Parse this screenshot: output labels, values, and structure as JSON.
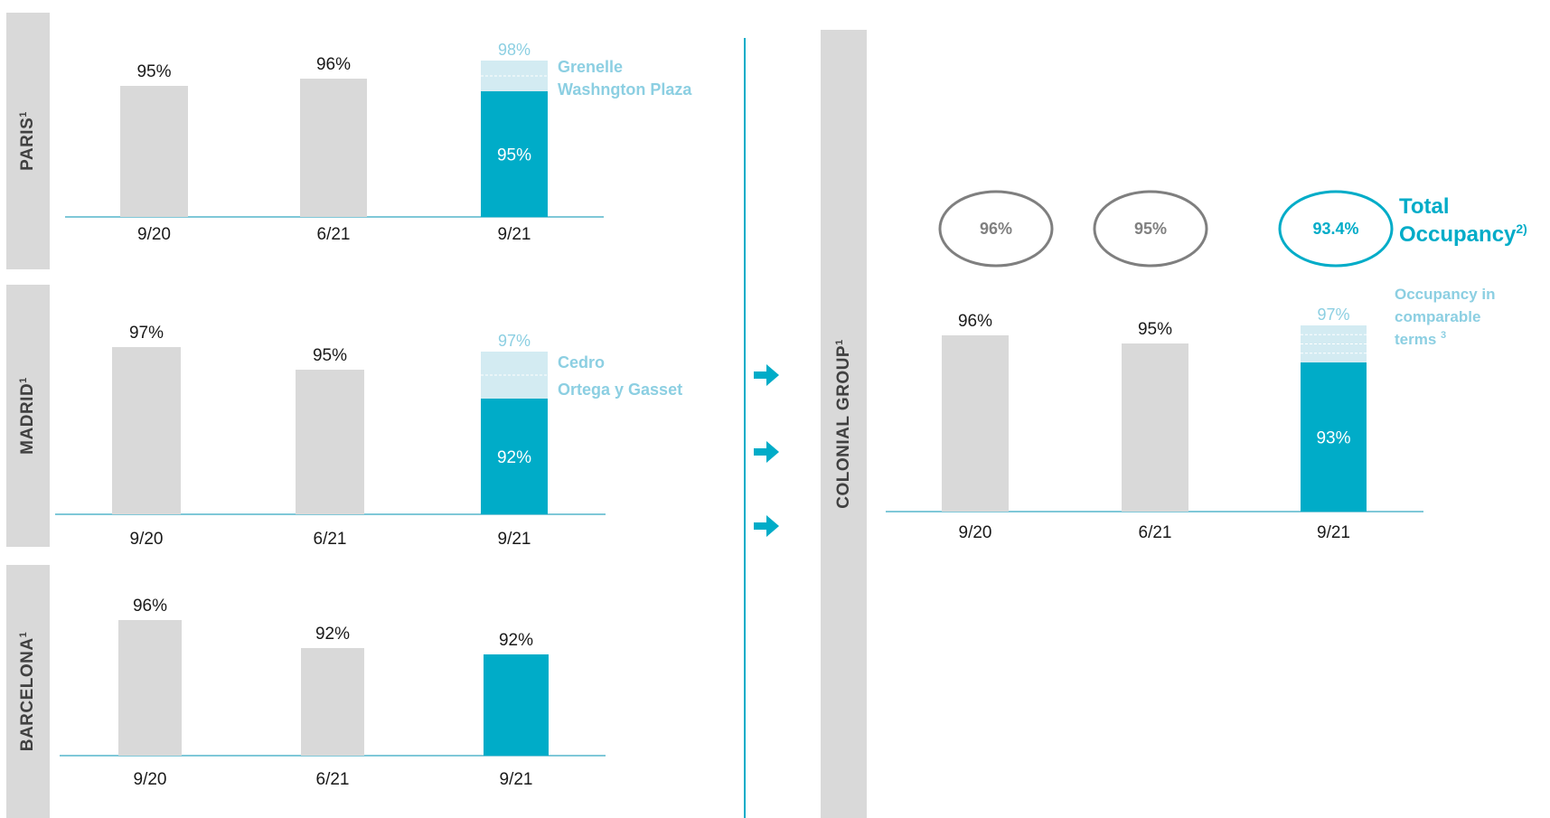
{
  "colors": {
    "gray": "#d9d9d9",
    "accent": "#00acc8",
    "light": "#d3ebf2",
    "lightText": "#8ccfe2",
    "axis": "#7fc8d8",
    "text": "#1a1a1a",
    "circleGray": "#7f7f7f",
    "circleText": "#808080"
  },
  "panels": {
    "paris": {
      "label": "PARIS",
      "sup": "1"
    },
    "madrid": {
      "label": "MADRID",
      "sup": "1"
    },
    "barcelona": {
      "label": "BARCELONA",
      "sup": "1"
    },
    "group": {
      "label": "COLONIAL GROUP",
      "sup": "1"
    }
  },
  "arrows": [
    "arrow",
    "arrow",
    "arrow"
  ],
  "summary_circles": [
    {
      "label": "96%",
      "highlight": false
    },
    {
      "label": "95%",
      "highlight": false
    },
    {
      "label": "93.4%",
      "highlight": true
    }
  ],
  "total_occupancy": {
    "line1": "Total",
    "line2": "Occupancy",
    "sup": "2)"
  },
  "comparable_note": {
    "line1": "Occupancy in",
    "line2": "comparable",
    "line3": "terms",
    "sup": "3"
  },
  "chart_data": [
    {
      "type": "bar",
      "panel": "PARIS",
      "categories": [
        "9/20",
        "6/21",
        "9/21"
      ],
      "values": [
        95,
        96,
        95
      ],
      "labels": [
        "95%",
        "96%",
        "95%"
      ],
      "comparable": {
        "category": "9/21",
        "value": 98,
        "label": "98%"
      },
      "annotations": [
        "Grenelle",
        "Washngton Plaza"
      ],
      "annotation_bands": 2
    },
    {
      "type": "bar",
      "panel": "MADRID",
      "categories": [
        "9/20",
        "6/21",
        "9/21"
      ],
      "values": [
        97,
        95,
        92
      ],
      "labels": [
        "97%",
        "95%",
        "92%"
      ],
      "comparable": {
        "category": "9/21",
        "value": 97,
        "label": "97%"
      },
      "annotations": [
        "Cedro",
        "Ortega y Gasset"
      ],
      "annotation_bands": 2
    },
    {
      "type": "bar",
      "panel": "BARCELONA",
      "categories": [
        "9/20",
        "6/21",
        "9/21"
      ],
      "values": [
        96,
        92,
        92
      ],
      "labels": [
        "96%",
        "92%",
        "92%"
      ],
      "inner_label": false
    },
    {
      "type": "bar",
      "panel": "COLONIAL GROUP",
      "categories": [
        "9/20",
        "6/21",
        "9/21"
      ],
      "values": [
        96,
        95,
        93
      ],
      "labels": [
        "96%",
        "95%",
        "93%"
      ],
      "comparable": {
        "category": "9/21",
        "value": 97,
        "label": "97%"
      },
      "annotation_bands": 4
    }
  ]
}
